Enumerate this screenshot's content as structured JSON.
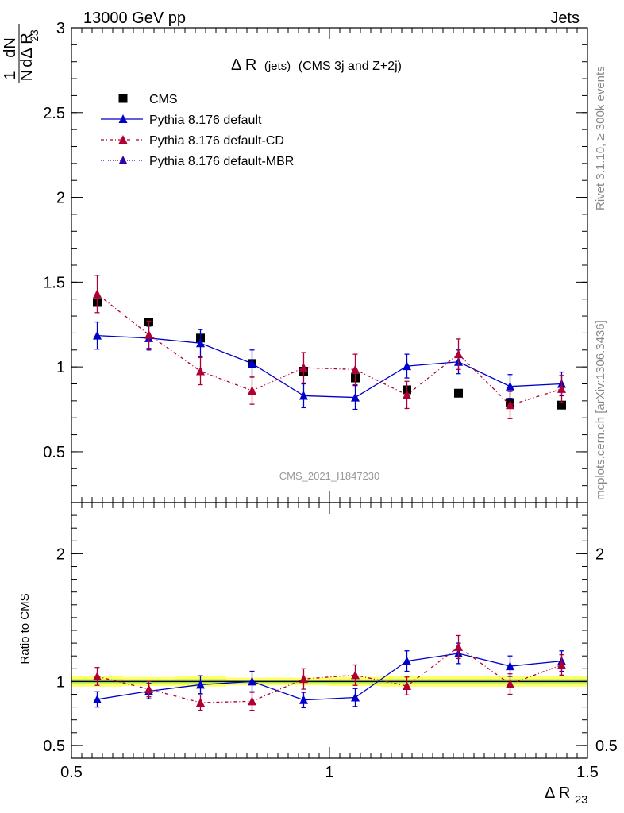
{
  "header": {
    "left": "13000 GeV pp",
    "right": "Jets"
  },
  "side_labels": {
    "rivet": "Rivet 3.1.10, ≥ 300k events",
    "mcplots": "mcplots.cern.ch [arXiv:1306.3436]"
  },
  "watermark": "CMS_2021_I1847230",
  "chart_data": [
    {
      "type": "scatter",
      "title": "Δ R (jets) (CMS 3j and Z+2j)",
      "title_main": "Δ R",
      "title_paren": "(jets)",
      "title_rest": "(CMS 3j and Z+2j)",
      "ylabel_num": "1",
      "ylabel_num2": "dN",
      "ylabel_den_N": "N",
      "ylabel_den_d": "dΔ R",
      "ylabel_den_sub": "23",
      "xlim": [
        0.5,
        1.5
      ],
      "ylim": [
        0.2,
        3.0
      ],
      "yticks": [
        {
          "v": 0.5,
          "label": "0.5"
        },
        {
          "v": 1.0,
          "label": "1"
        },
        {
          "v": 1.5,
          "label": "1.5"
        },
        {
          "v": 2.0,
          "label": "2"
        },
        {
          "v": 2.5,
          "label": "2.5"
        },
        {
          "v": 3.0,
          "label": "3"
        }
      ],
      "legend_position": "top-left",
      "x": [
        0.55,
        0.65,
        0.75,
        0.85,
        0.95,
        1.05,
        1.15,
        1.25,
        1.35,
        1.45
      ],
      "series": [
        {
          "name": "CMS",
          "marker": "square",
          "color": "#000000",
          "values": [
            1.38,
            1.265,
            1.17,
            1.02,
            0.975,
            0.935,
            0.865,
            0.845,
            0.79,
            0.775
          ]
        },
        {
          "name": "Pythia 8.176 default",
          "marker": "triangle",
          "color": "#0000cc",
          "dash": "solid",
          "values": [
            1.185,
            1.17,
            1.14,
            1.02,
            0.83,
            0.82,
            1.005,
            1.03,
            0.885,
            0.9
          ],
          "errors": [
            0.08,
            0.07,
            0.08,
            0.08,
            0.07,
            0.07,
            0.07,
            0.07,
            0.07,
            0.07
          ]
        },
        {
          "name": "Pythia 8.176 default-CD",
          "marker": "triangle",
          "color": "#b00033",
          "dash": "4,3,1,3",
          "values": [
            1.43,
            1.19,
            0.975,
            0.86,
            0.995,
            0.985,
            0.835,
            1.075,
            0.775,
            0.87
          ],
          "errors": [
            0.11,
            0.08,
            0.08,
            0.08,
            0.09,
            0.09,
            0.08,
            0.09,
            0.08,
            0.08
          ]
        },
        {
          "name": "Pythia 8.176 default-MBR",
          "marker": "triangle",
          "color": "#3300aa",
          "dash": "1,2",
          "values": [],
          "errors": []
        }
      ]
    },
    {
      "type": "scatter",
      "ylabel": "Ratio to CMS",
      "xlabel_main": "Δ R",
      "xlabel_sub": "23",
      "xlim": [
        0.5,
        1.5
      ],
      "ylim": [
        0.4,
        2.4
      ],
      "xticks": [
        {
          "v": 0.5,
          "label": "0.5"
        },
        {
          "v": 1.0,
          "label": "1"
        },
        {
          "v": 1.5,
          "label": "1.5"
        }
      ],
      "yticks": [
        {
          "v": 0.5,
          "label": "0.5"
        },
        {
          "v": 1.0,
          "label": "1"
        },
        {
          "v": 2.0,
          "label": "2"
        }
      ],
      "x": [
        0.55,
        0.65,
        0.75,
        0.85,
        0.95,
        1.05,
        1.15,
        1.25,
        1.35,
        1.45
      ],
      "band": {
        "color": "#ffff66",
        "edge_color": "#99ee66",
        "values": [
          0.04,
          0.035,
          0.04,
          0.03,
          0.03,
          0.035,
          0.04,
          0.04,
          0.04,
          0.04
        ]
      },
      "series": [
        {
          "name": "Pythia 8.176 default",
          "color": "#0000cc",
          "dash": "solid",
          "values": [
            0.86,
            0.925,
            0.975,
            1.0,
            0.855,
            0.875,
            1.16,
            1.22,
            1.12,
            1.16
          ],
          "errors": [
            0.06,
            0.06,
            0.07,
            0.08,
            0.06,
            0.07,
            0.08,
            0.08,
            0.08,
            0.08
          ]
        },
        {
          "name": "Pythia 8.176 default-CD",
          "color": "#b00033",
          "dash": "4,3,1,3",
          "values": [
            1.04,
            0.94,
            0.835,
            0.845,
            1.02,
            1.05,
            0.965,
            1.27,
            0.98,
            1.13
          ],
          "errors": [
            0.07,
            0.06,
            0.06,
            0.07,
            0.08,
            0.08,
            0.07,
            0.09,
            0.08,
            0.08
          ]
        }
      ]
    }
  ]
}
